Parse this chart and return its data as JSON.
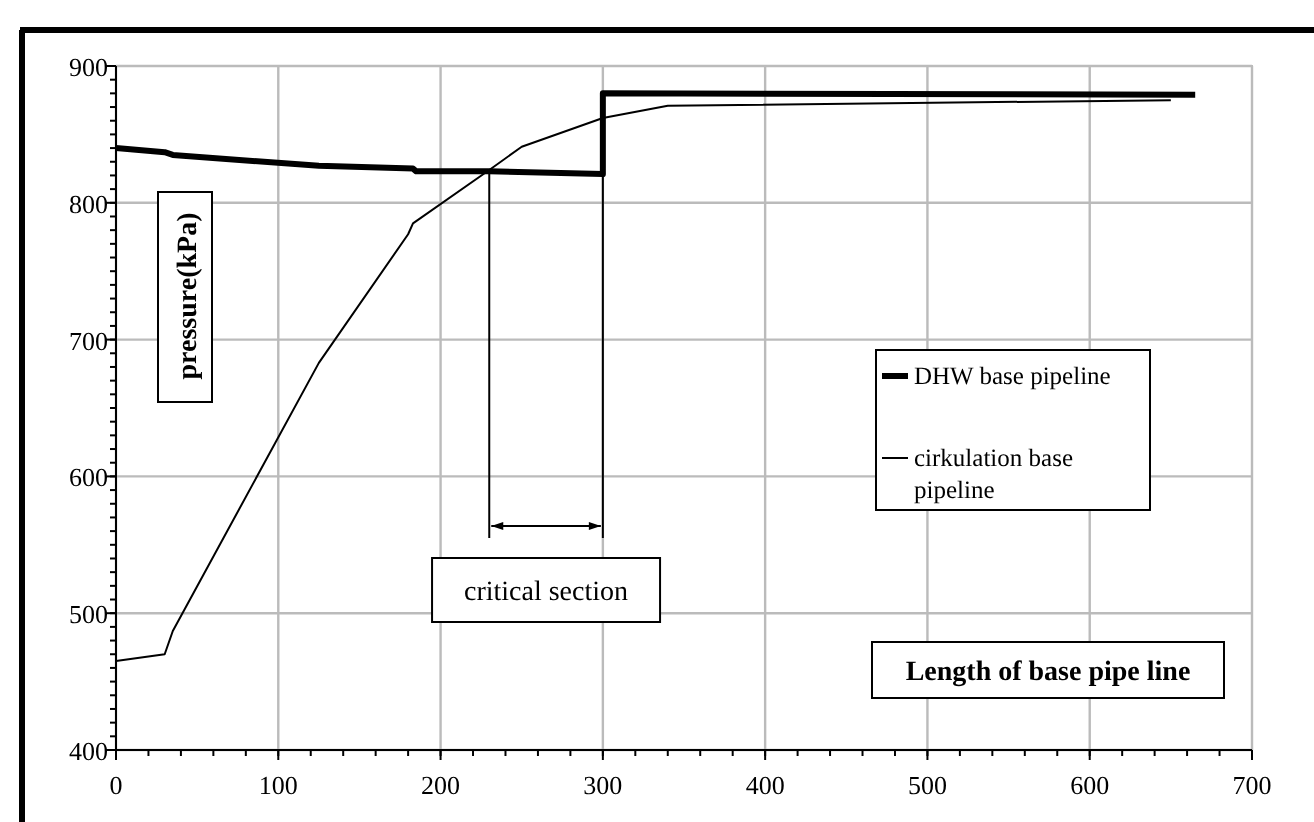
{
  "chart_data": {
    "type": "line",
    "xlabel": "Length of base pipe line",
    "ylabel": "pressure(kPa)",
    "xlim": [
      0,
      700
    ],
    "ylim": [
      400,
      900
    ],
    "xticks": [
      0,
      100,
      200,
      300,
      400,
      500,
      600,
      700
    ],
    "yticks": [
      400,
      500,
      600,
      700,
      800,
      900
    ],
    "grid": true,
    "legend": "right",
    "marker": "none",
    "annotations": [
      "critical section"
    ],
    "series": [
      {
        "name": "DHW base pipeline",
        "color": "#000000",
        "x": [
          0,
          30,
          35,
          125,
          183,
          185,
          230,
          300,
          300,
          665
        ],
        "values": [
          840,
          837,
          835,
          827,
          825,
          823,
          823,
          821,
          880,
          879
        ]
      },
      {
        "name": "cirkulation base pipeline",
        "color": "#000000",
        "x": [
          0,
          30,
          35,
          125,
          180,
          183,
          230,
          250,
          300,
          340,
          650
        ],
        "values": [
          465,
          470,
          487,
          683,
          777,
          785,
          824,
          841,
          862,
          871,
          875
        ]
      }
    ]
  }
}
